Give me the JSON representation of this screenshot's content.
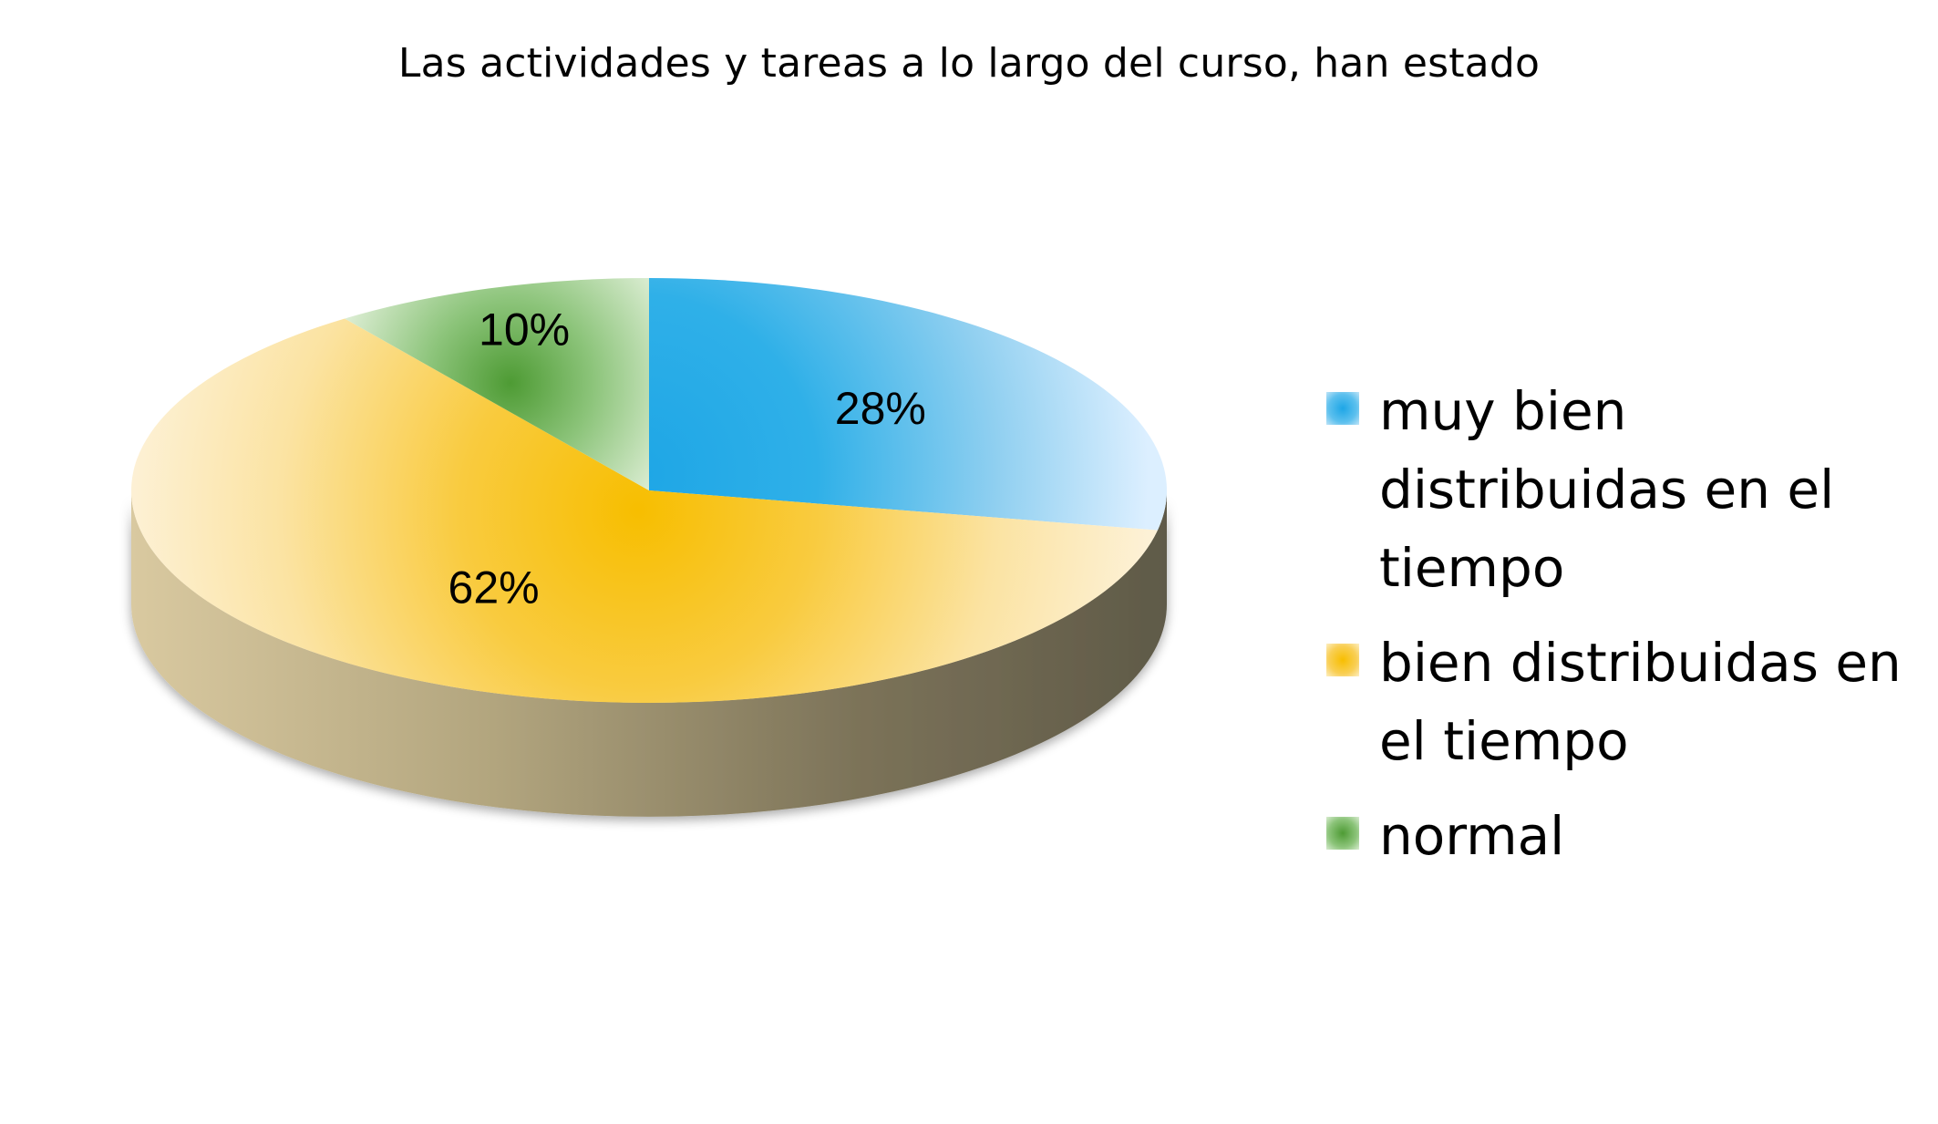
{
  "chart_data": {
    "type": "pie",
    "title": "Las actividades y tareas a lo largo del curso, han estado",
    "categories": [
      "muy bien distribuidas en el tiempo",
      "bien distribuidas en el tiempo",
      "normal"
    ],
    "values": [
      28,
      62,
      10
    ],
    "data_labels": [
      "28%",
      "62%",
      "10%"
    ],
    "colors": [
      "#29abe2",
      "#f7be11",
      "#5aa339"
    ],
    "legend_position": "right",
    "style": "3d"
  }
}
